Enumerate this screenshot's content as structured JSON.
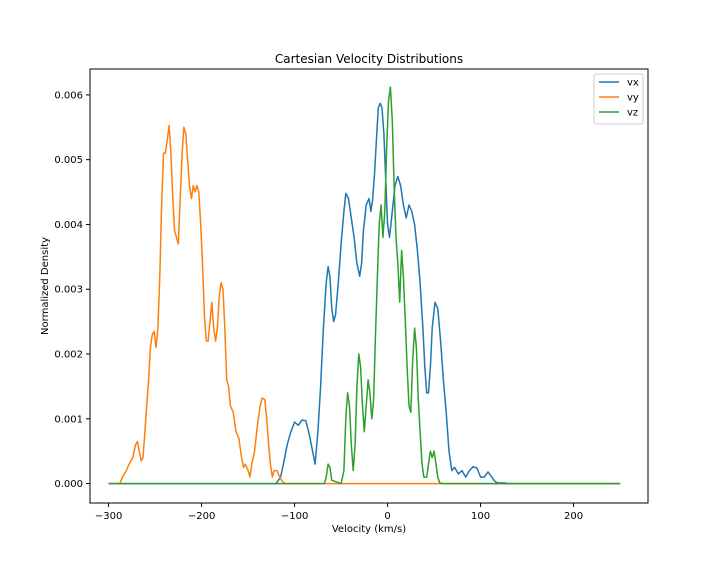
{
  "chart_data": {
    "type": "line",
    "title": "Cartesian Velocity Distributions",
    "xlabel": "Velocity (km/s)",
    "ylabel": "Normalized Density",
    "xlim": [
      -320,
      280
    ],
    "ylim": [
      -0.0003,
      0.0064
    ],
    "xticks": [
      -300,
      -200,
      -100,
      0,
      100,
      200
    ],
    "xtick_labels": [
      "−300",
      "−200",
      "−100",
      "0",
      "100",
      "200"
    ],
    "yticks": [
      0.0,
      0.001,
      0.002,
      0.003,
      0.004,
      0.005,
      0.006
    ],
    "ytick_labels": [
      "0.000",
      "0.001",
      "0.002",
      "0.003",
      "0.004",
      "0.005",
      "0.006"
    ],
    "grid": false,
    "legend": "top-right",
    "series": [
      {
        "name": "vx",
        "color": "#1f77b4",
        "points": [
          [
            -300,
            0
          ],
          [
            -120,
            0
          ],
          [
            -115,
            0.0001
          ],
          [
            -112,
            0.0003
          ],
          [
            -108,
            0.0006
          ],
          [
            -104,
            0.0008
          ],
          [
            -100,
            0.00095
          ],
          [
            -96,
            0.0009
          ],
          [
            -92,
            0.00098
          ],
          [
            -88,
            0.00097
          ],
          [
            -85,
            0.0008
          ],
          [
            -82,
            0.0006
          ],
          [
            -80,
            0.00045
          ],
          [
            -78,
            0.0003
          ],
          [
            -75,
            0.0008
          ],
          [
            -72,
            0.0015
          ],
          [
            -69,
            0.0024
          ],
          [
            -66,
            0.0031
          ],
          [
            -64,
            0.00335
          ],
          [
            -62,
            0.0032
          ],
          [
            -60,
            0.0027
          ],
          [
            -58,
            0.0025
          ],
          [
            -56,
            0.0026
          ],
          [
            -53,
            0.0031
          ],
          [
            -50,
            0.0037
          ],
          [
            -47,
            0.0042
          ],
          [
            -45,
            0.00448
          ],
          [
            -42,
            0.0044
          ],
          [
            -39,
            0.0041
          ],
          [
            -36,
            0.0038
          ],
          [
            -33,
            0.0034
          ],
          [
            -30,
            0.0032
          ],
          [
            -28,
            0.0034
          ],
          [
            -26,
            0.0039
          ],
          [
            -23,
            0.0043
          ],
          [
            -20,
            0.0044
          ],
          [
            -18,
            0.0042
          ],
          [
            -16,
            0.0044
          ],
          [
            -14,
            0.0048
          ],
          [
            -12,
            0.0053
          ],
          [
            -10,
            0.0058
          ],
          [
            -8,
            0.00587
          ],
          [
            -6,
            0.0058
          ],
          [
            -4,
            0.0054
          ],
          [
            -2,
            0.0047
          ],
          [
            0,
            0.004
          ],
          [
            2,
            0.0038
          ],
          [
            5,
            0.0042
          ],
          [
            8,
            0.0046
          ],
          [
            11,
            0.00474
          ],
          [
            14,
            0.0046
          ],
          [
            17,
            0.0043
          ],
          [
            20,
            0.0041
          ],
          [
            23,
            0.0043
          ],
          [
            26,
            0.0042
          ],
          [
            29,
            0.004
          ],
          [
            32,
            0.0036
          ],
          [
            35,
            0.0031
          ],
          [
            38,
            0.0024
          ],
          [
            40,
            0.0018
          ],
          [
            42,
            0.0014
          ],
          [
            44,
            0.0014
          ],
          [
            46,
            0.0018
          ],
          [
            48,
            0.0024
          ],
          [
            51,
            0.0028
          ],
          [
            54,
            0.0027
          ],
          [
            57,
            0.0022
          ],
          [
            60,
            0.0016
          ],
          [
            63,
            0.0011
          ],
          [
            66,
            0.0005
          ],
          [
            69,
            0.0002
          ],
          [
            72,
            0.00025
          ],
          [
            76,
            0.00015
          ],
          [
            80,
            0.0002
          ],
          [
            84,
            0.0001
          ],
          [
            88,
            0.0002
          ],
          [
            92,
            0.00026
          ],
          [
            96,
            0.00024
          ],
          [
            100,
            0.0001
          ],
          [
            104,
            0.0001
          ],
          [
            108,
            0.00018
          ],
          [
            112,
            0.0001
          ],
          [
            115,
            4e-05
          ],
          [
            118,
            1e-05
          ],
          [
            125,
            1e-05
          ],
          [
            130,
            0
          ],
          [
            250,
            0
          ]
        ]
      },
      {
        "name": "vy",
        "color": "#ff7f0e",
        "points": [
          [
            -300,
            0
          ],
          [
            -288,
            0
          ],
          [
            -285,
            0.0001
          ],
          [
            -281,
            0.0002
          ],
          [
            -278,
            0.0003
          ],
          [
            -274,
            0.0004
          ],
          [
            -271,
            0.0006
          ],
          [
            -269,
            0.00065
          ],
          [
            -267,
            0.0005
          ],
          [
            -265,
            0.00035
          ],
          [
            -263,
            0.0004
          ],
          [
            -261,
            0.0008
          ],
          [
            -259,
            0.0012
          ],
          [
            -257,
            0.0016
          ],
          [
            -255,
            0.0021
          ],
          [
            -253,
            0.0023
          ],
          [
            -251,
            0.00235
          ],
          [
            -249,
            0.0021
          ],
          [
            -247,
            0.0024
          ],
          [
            -245,
            0.0032
          ],
          [
            -243,
            0.0043
          ],
          [
            -241,
            0.0051
          ],
          [
            -239,
            0.0051
          ],
          [
            -237,
            0.0053
          ],
          [
            -235,
            0.00553
          ],
          [
            -233,
            0.0051
          ],
          [
            -231,
            0.0044
          ],
          [
            -229,
            0.0039
          ],
          [
            -227,
            0.0038
          ],
          [
            -225,
            0.0037
          ],
          [
            -223,
            0.0044
          ],
          [
            -221,
            0.0051
          ],
          [
            -219,
            0.0055
          ],
          [
            -217,
            0.0054
          ],
          [
            -215,
            0.005
          ],
          [
            -213,
            0.0046
          ],
          [
            -211,
            0.0044
          ],
          [
            -209,
            0.0046
          ],
          [
            -207,
            0.0045
          ],
          [
            -205,
            0.0046
          ],
          [
            -203,
            0.0045
          ],
          [
            -201,
            0.004
          ],
          [
            -199,
            0.0034
          ],
          [
            -197,
            0.0026
          ],
          [
            -195,
            0.0022
          ],
          [
            -193,
            0.0022
          ],
          [
            -191,
            0.0025
          ],
          [
            -189,
            0.0028
          ],
          [
            -187,
            0.0024
          ],
          [
            -185,
            0.0022
          ],
          [
            -183,
            0.0024
          ],
          [
            -181,
            0.0029
          ],
          [
            -179,
            0.0031
          ],
          [
            -177,
            0.003
          ],
          [
            -175,
            0.0024
          ],
          [
            -173,
            0.0016
          ],
          [
            -171,
            0.0015
          ],
          [
            -169,
            0.0012
          ],
          [
            -166,
            0.0011
          ],
          [
            -163,
            0.0008
          ],
          [
            -160,
            0.0007
          ],
          [
            -157,
            0.0004
          ],
          [
            -155,
            0.00025
          ],
          [
            -153,
            0.0003
          ],
          [
            -150,
            0.0002
          ],
          [
            -148,
            0.0001
          ],
          [
            -146,
            0.0003
          ],
          [
            -143,
            0.0005
          ],
          [
            -140,
            0.0009
          ],
          [
            -137,
            0.0012
          ],
          [
            -135,
            0.00132
          ],
          [
            -132,
            0.0013
          ],
          [
            -130,
            0.001
          ],
          [
            -128,
            0.0006
          ],
          [
            -126,
            0.0003
          ],
          [
            -124,
            0.0001
          ],
          [
            -122,
            0.0002
          ],
          [
            -119,
            0.0002
          ],
          [
            -116,
            0.0001
          ],
          [
            -113,
            3e-05
          ],
          [
            -110,
            0
          ],
          [
            250,
            0
          ]
        ]
      },
      {
        "name": "vz",
        "color": "#2ca02c",
        "points": [
          [
            -300,
            0
          ],
          [
            -68,
            0
          ],
          [
            -66,
            0.0001
          ],
          [
            -64,
            0.0003
          ],
          [
            -62,
            0.00025
          ],
          [
            -60,
            5e-05
          ],
          [
            -50,
            0
          ],
          [
            -47,
            0.0002
          ],
          [
            -45,
            0.001
          ],
          [
            -43,
            0.0014
          ],
          [
            -41,
            0.0012
          ],
          [
            -39,
            0.0006
          ],
          [
            -37,
            0.0002
          ],
          [
            -35,
            0.0006
          ],
          [
            -33,
            0.0015
          ],
          [
            -31,
            0.002
          ],
          [
            -29,
            0.0018
          ],
          [
            -27,
            0.0012
          ],
          [
            -25,
            0.0008
          ],
          [
            -23,
            0.0012
          ],
          [
            -21,
            0.0016
          ],
          [
            -19,
            0.0014
          ],
          [
            -17,
            0.001
          ],
          [
            -15,
            0.0013
          ],
          [
            -13,
            0.0023
          ],
          [
            -11,
            0.0032
          ],
          [
            -9,
            0.004
          ],
          [
            -7,
            0.0043
          ],
          [
            -5,
            0.0038
          ],
          [
            -3,
            0.0042
          ],
          [
            -1,
            0.0052
          ],
          [
            1,
            0.0059
          ],
          [
            3,
            0.00612
          ],
          [
            5,
            0.0056
          ],
          [
            7,
            0.0046
          ],
          [
            9,
            0.0038
          ],
          [
            11,
            0.0034
          ],
          [
            13,
            0.0028
          ],
          [
            15,
            0.0036
          ],
          [
            17,
            0.0032
          ],
          [
            19,
            0.0025
          ],
          [
            21,
            0.0018
          ],
          [
            23,
            0.0012
          ],
          [
            25,
            0.0011
          ],
          [
            27,
            0.0019
          ],
          [
            29,
            0.0024
          ],
          [
            31,
            0.0021
          ],
          [
            33,
            0.0013
          ],
          [
            35,
            0.0008
          ],
          [
            37,
            0.0003
          ],
          [
            39,
            0.0001
          ],
          [
            42,
            0.0001
          ],
          [
            44,
            0.0003
          ],
          [
            46,
            0.0005
          ],
          [
            48,
            0.0004
          ],
          [
            50,
            0.0005
          ],
          [
            52,
            0.0003
          ],
          [
            54,
            0.0001
          ],
          [
            56,
            1e-05
          ],
          [
            60,
            0
          ],
          [
            250,
            0
          ]
        ]
      }
    ]
  }
}
